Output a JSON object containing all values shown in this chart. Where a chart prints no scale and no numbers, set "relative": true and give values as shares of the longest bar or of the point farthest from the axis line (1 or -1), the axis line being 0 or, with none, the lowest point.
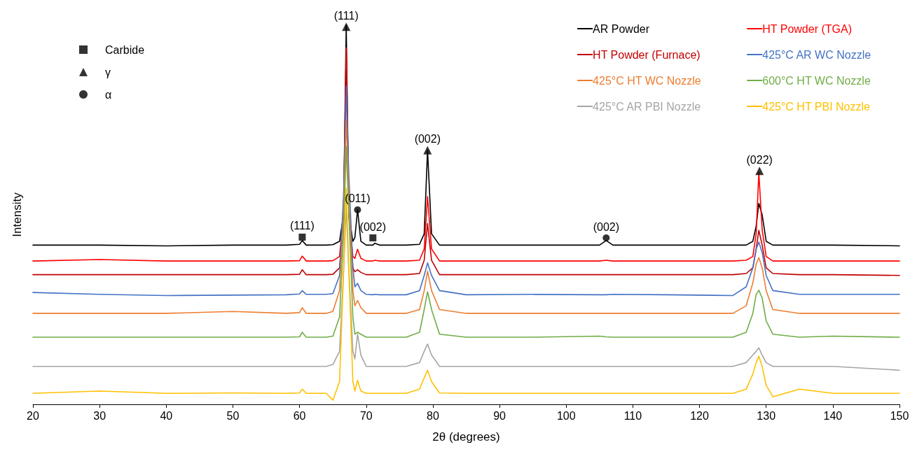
{
  "chart_data": {
    "type": "line",
    "relative": true,
    "xlabel": "2θ (degrees)",
    "ylabel": "Intensity",
    "xlim": [
      20,
      150
    ],
    "xticks": [
      20,
      30,
      40,
      50,
      60,
      70,
      80,
      90,
      100,
      110,
      120,
      130,
      140,
      150
    ],
    "grid": false,
    "legend": "top right",
    "marker": "none",
    "line_style": "solid",
    "x": [
      20,
      30,
      40,
      50,
      58,
      60,
      60.4,
      61,
      64,
      65,
      66,
      66.6,
      67,
      67.4,
      68,
      68.3,
      68.7,
      69.2,
      70,
      71,
      71.3,
      72,
      76,
      78,
      78.7,
      79.2,
      79.8,
      81,
      85,
      95,
      105,
      106,
      107,
      115,
      125,
      127,
      128,
      128.5,
      128.9,
      129.4,
      130,
      131,
      135,
      140,
      150
    ],
    "series": [
      {
        "name": "AR Powder",
        "color": "#000000",
        "values": [
          0.42,
          0.42,
          0.418,
          0.42,
          0.42,
          0.422,
          0.432,
          0.42,
          0.42,
          0.421,
          0.43,
          0.5,
          1.0,
          0.5,
          0.43,
          0.44,
          0.513,
          0.43,
          0.42,
          0.42,
          0.425,
          0.42,
          0.42,
          0.422,
          0.45,
          0.67,
          0.45,
          0.42,
          0.42,
          0.42,
          0.42,
          0.432,
          0.42,
          0.42,
          0.42,
          0.42,
          0.43,
          0.47,
          0.53,
          0.5,
          0.43,
          0.42,
          0.42,
          0.42,
          0.418
        ]
      },
      {
        "name": "HT Powder (TGA)",
        "color": "#ff0000",
        "values": [
          0.378,
          0.382,
          0.378,
          0.378,
          0.378,
          0.379,
          0.391,
          0.378,
          0.378,
          0.379,
          0.39,
          0.5,
          0.94,
          0.5,
          0.39,
          0.385,
          0.409,
          0.385,
          0.378,
          0.378,
          0.38,
          0.378,
          0.378,
          0.38,
          0.41,
          0.548,
          0.41,
          0.378,
          0.378,
          0.378,
          0.378,
          0.38,
          0.378,
          0.378,
          0.378,
          0.38,
          0.39,
          0.45,
          0.611,
          0.46,
          0.39,
          0.378,
          0.378,
          0.378,
          0.378
        ]
      },
      {
        "name": "HT Powder (Furnace)",
        "color": "#c00000",
        "values": [
          0.342,
          0.342,
          0.342,
          0.342,
          0.342,
          0.343,
          0.355,
          0.342,
          0.342,
          0.343,
          0.36,
          0.5,
          0.88,
          0.5,
          0.36,
          0.35,
          0.355,
          0.348,
          0.342,
          0.342,
          0.342,
          0.342,
          0.342,
          0.345,
          0.38,
          0.477,
          0.38,
          0.342,
          0.342,
          0.342,
          0.342,
          0.342,
          0.342,
          0.342,
          0.342,
          0.345,
          0.36,
          0.41,
          0.459,
          0.42,
          0.36,
          0.345,
          0.342,
          0.342,
          0.34
        ]
      },
      {
        "name": "425°C AR WC Nozzle",
        "color": "#4472c4",
        "values": [
          0.295,
          0.29,
          0.287,
          0.288,
          0.289,
          0.291,
          0.3,
          0.29,
          0.29,
          0.292,
          0.34,
          0.55,
          0.84,
          0.6,
          0.36,
          0.31,
          0.319,
          0.3,
          0.29,
          0.289,
          0.29,
          0.289,
          0.289,
          0.3,
          0.34,
          0.373,
          0.34,
          0.3,
          0.289,
          0.29,
          0.289,
          0.289,
          0.29,
          0.289,
          0.287,
          0.31,
          0.36,
          0.41,
          0.428,
          0.4,
          0.34,
          0.3,
          0.29,
          0.29,
          0.29
        ]
      },
      {
        "name": "425°C HT WC Nozzle",
        "color": "#ed7d31",
        "values": [
          0.24,
          0.24,
          0.24,
          0.245,
          0.24,
          0.242,
          0.255,
          0.24,
          0.24,
          0.245,
          0.3,
          0.5,
          0.75,
          0.55,
          0.3,
          0.26,
          0.274,
          0.255,
          0.24,
          0.24,
          0.24,
          0.24,
          0.24,
          0.25,
          0.3,
          0.351,
          0.3,
          0.25,
          0.24,
          0.24,
          0.24,
          0.24,
          0.24,
          0.24,
          0.24,
          0.26,
          0.32,
          0.37,
          0.387,
          0.36,
          0.3,
          0.25,
          0.24,
          0.24,
          0.24
        ]
      },
      {
        "name": "600°C HT WC Nozzle",
        "color": "#70ad47",
        "values": [
          0.177,
          0.177,
          0.177,
          0.177,
          0.177,
          0.178,
          0.19,
          0.177,
          0.177,
          0.18,
          0.23,
          0.45,
          0.68,
          0.5,
          0.23,
          0.185,
          0.19,
          0.185,
          0.177,
          0.177,
          0.177,
          0.177,
          0.177,
          0.19,
          0.25,
          0.297,
          0.25,
          0.185,
          0.177,
          0.177,
          0.18,
          0.178,
          0.177,
          0.177,
          0.177,
          0.19,
          0.24,
          0.29,
          0.301,
          0.28,
          0.22,
          0.185,
          0.177,
          0.18,
          0.177
        ]
      },
      {
        "name": "425°C AR PBI Nozzle",
        "color": "#a5a5a5",
        "values": [
          0.1,
          0.1,
          0.1,
          0.1,
          0.1,
          0.1,
          0.1,
          0.1,
          0.1,
          0.105,
          0.14,
          0.35,
          0.52,
          0.35,
          0.14,
          0.12,
          0.185,
          0.13,
          0.1,
          0.1,
          0.1,
          0.1,
          0.1,
          0.11,
          0.14,
          0.159,
          0.13,
          0.1,
          0.1,
          0.1,
          0.1,
          0.1,
          0.1,
          0.1,
          0.1,
          0.11,
          0.13,
          0.14,
          0.149,
          0.13,
          0.11,
          0.1,
          0.1,
          0.1,
          0.09
        ]
      },
      {
        "name": "425°C HT PBI Nozzle",
        "color": "#ffc000",
        "values": [
          0.029,
          0.035,
          0.029,
          0.03,
          0.029,
          0.03,
          0.04,
          0.029,
          0.029,
          0.011,
          0.06,
          0.35,
          0.57,
          0.35,
          0.06,
          0.035,
          0.063,
          0.035,
          0.029,
          0.029,
          0.029,
          0.029,
          0.029,
          0.04,
          0.07,
          0.09,
          0.06,
          0.03,
          0.029,
          0.029,
          0.029,
          0.029,
          0.029,
          0.029,
          0.029,
          0.04,
          0.08,
          0.11,
          0.127,
          0.1,
          0.05,
          0.02,
          0.04,
          0.029,
          0.029
        ]
      },
      {
        "name": "Carbide",
        "type": "scatter",
        "marker": "square",
        "color": "#000000",
        "x": [
          60.4,
          71
        ],
        "values": [
          0.441,
          0.439
        ]
      },
      {
        "name": "γ",
        "type": "scatter",
        "marker": "triangle",
        "color": "#000000",
        "x": [
          67,
          79.2,
          129
        ],
        "values": [
          0.996,
          0.67,
          0.616
        ]
      },
      {
        "name": "α",
        "type": "scatter",
        "marker": "circle",
        "color": "#000000",
        "x": [
          68.7,
          106
        ],
        "values": [
          0.513,
          0.439
        ]
      }
    ],
    "annotations": [
      {
        "text": "(111)",
        "x": 67,
        "y": 0.996
      },
      {
        "text": "(111)",
        "x": 60.4,
        "y": 0.441
      },
      {
        "text": "(011)",
        "x": 68.7,
        "y": 0.513
      },
      {
        "text": "(002)",
        "x": 71,
        "y": 0.439
      },
      {
        "text": "(002)",
        "x": 79.2,
        "y": 0.67
      },
      {
        "text": "(002)",
        "x": 106,
        "y": 0.439
      },
      {
        "text": "(022)",
        "x": 129,
        "y": 0.616
      }
    ]
  }
}
